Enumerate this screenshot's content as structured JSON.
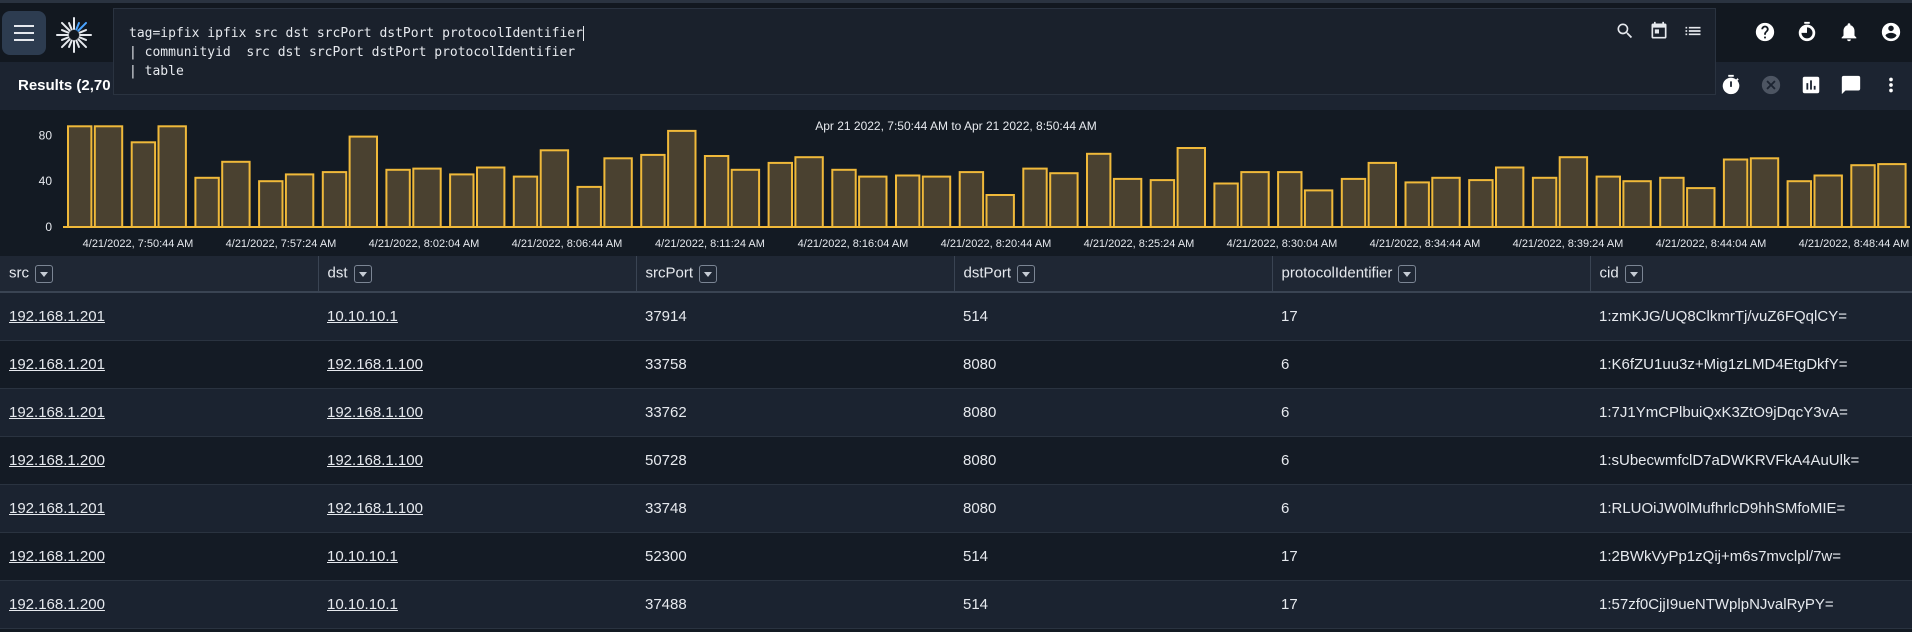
{
  "query": {
    "lines": [
      "tag=ipfix ipfix src dst srcPort dstPort protocolIdentifier",
      "| communityid  src dst srcPort dstPort protocolIdentifier",
      "| table"
    ]
  },
  "results_title": "Results (2,70",
  "chart_data": {
    "type": "bar",
    "title": "Apr 21 2022, 7:50:44 AM to Apr 21 2022, 8:50:44 AM",
    "ylim": [
      0,
      90
    ],
    "yticks": [
      0,
      40,
      80
    ],
    "xtick_labels": [
      "4/21/2022, 7:50:44 AM",
      "4/21/2022, 7:57:24 AM",
      "4/21/2022, 8:02:04 AM",
      "4/21/2022, 8:06:44 AM",
      "4/21/2022, 8:11:24 AM",
      "4/21/2022, 8:16:04 AM",
      "4/21/2022, 8:20:44 AM",
      "4/21/2022, 8:25:24 AM",
      "4/21/2022, 8:30:04 AM",
      "4/21/2022, 8:34:44 AM",
      "4/21/2022, 8:39:24 AM",
      "4/21/2022, 8:44:04 AM",
      "4/21/2022, 8:48:44 AM"
    ],
    "values": [
      88,
      88,
      74,
      88,
      43,
      57,
      40,
      46,
      48,
      79,
      50,
      51,
      46,
      52,
      44,
      67,
      35,
      60,
      63,
      84,
      62,
      50,
      56,
      61,
      50,
      44,
      45,
      44,
      48,
      28,
      51,
      47,
      64,
      42,
      41,
      69,
      38,
      48,
      48,
      32,
      42,
      56,
      39,
      43,
      41,
      52,
      43,
      61,
      44,
      40,
      43,
      34,
      59,
      60,
      40,
      45,
      54,
      55
    ],
    "grid": false,
    "bar_fill": "#4a4130",
    "bar_stroke": "#f0b93a"
  },
  "table": {
    "columns": [
      "src",
      "dst",
      "srcPort",
      "dstPort",
      "protocolIdentifier",
      "cid"
    ],
    "rows": [
      [
        "192.168.1.201",
        "10.10.10.1",
        "37914",
        "514",
        "17",
        "1:zmKJG/UQ8ClkmrTj/vuZ6FQqlCY="
      ],
      [
        "192.168.1.201",
        "192.168.1.100",
        "33758",
        "8080",
        "6",
        "1:K6fZU1uu3z+Mig1zLMD4EtgDkfY="
      ],
      [
        "192.168.1.201",
        "192.168.1.100",
        "33762",
        "8080",
        "6",
        "1:7J1YmCPlbuiQxK3ZtO9jDqcY3vA="
      ],
      [
        "192.168.1.200",
        "192.168.1.100",
        "50728",
        "8080",
        "6",
        "1:sUbecwmfclD7aDWKRVFkA4AuUlk="
      ],
      [
        "192.168.1.201",
        "192.168.1.100",
        "33748",
        "8080",
        "6",
        "1:RLUOiJW0lMufhrlcD9hhSMfoMIE="
      ],
      [
        "192.168.1.200",
        "10.10.10.1",
        "52300",
        "514",
        "17",
        "1:2BWkVyPp1zQij+m6s7mvclpl/7w="
      ],
      [
        "192.168.1.200",
        "10.10.10.1",
        "37488",
        "514",
        "17",
        "1:57zf0CjjI9ueNTWplpNJvalRyPY="
      ]
    ]
  },
  "icons": {
    "menu": "menu-icon",
    "logo": "gravwell-logo",
    "search": "search-icon",
    "calendar": "calendar-icon",
    "list": "list-icon",
    "help": "help-icon",
    "timer": "timer-icon",
    "bell": "bell-icon",
    "account": "account-icon",
    "stopwatch": "stopwatch-icon",
    "cancel": "cancel-icon",
    "chart": "chart-icon",
    "comment": "comment-icon",
    "more": "more-vert-icon"
  }
}
